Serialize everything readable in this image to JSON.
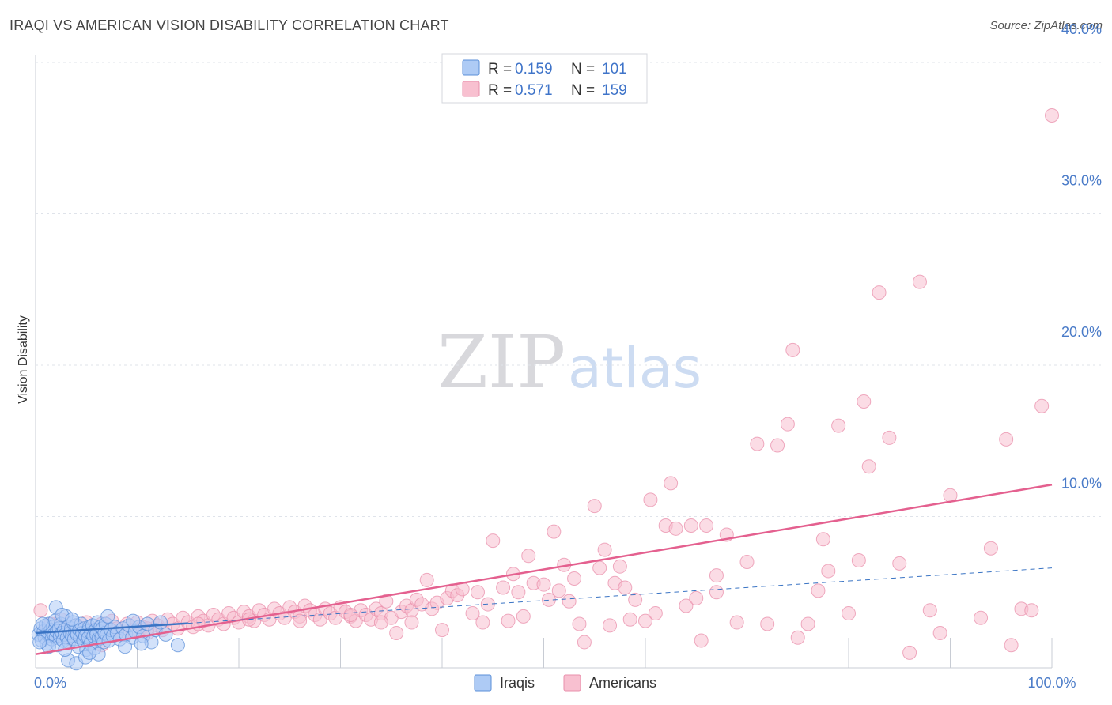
{
  "title": "IRAQI VS AMERICAN VISION DISABILITY CORRELATION CHART",
  "source": "Source: ZipAtlas.com",
  "watermark": {
    "zip": "ZIP",
    "atlas": "atlas"
  },
  "colors": {
    "iraqis_fill": "#aecbf5",
    "iraqis_stroke": "#5b8fd8",
    "iraqis_line": "#3a74c4",
    "americans_fill": "#f8c0d0",
    "americans_stroke": "#e98fab",
    "americans_line": "#e4608f",
    "tick_label": "#4a7bc8"
  },
  "legend": {
    "rows": [
      {
        "r_label": "R = ",
        "r_value": "0.159",
        "n_label": "N = ",
        "n_value": "101"
      },
      {
        "r_label": "R = ",
        "r_value": "0.571",
        "n_label": "N = ",
        "n_value": "159"
      }
    ]
  },
  "chart_data": {
    "type": "scatter",
    "title": "IRAQI VS AMERICAN VISION DISABILITY CORRELATION CHART",
    "xlabel": "",
    "ylabel": "Vision Disability",
    "xlim": [
      0,
      100
    ],
    "ylim": [
      0,
      42
    ],
    "x_tick_labels": [
      {
        "value": 0,
        "label": "0.0%"
      },
      {
        "value": 100,
        "label": "100.0%"
      }
    ],
    "y_tick_labels": [
      {
        "value": 10,
        "label": "10.0%"
      },
      {
        "value": 20,
        "label": "20.0%"
      },
      {
        "value": 30,
        "label": "30.0%"
      },
      {
        "value": 40,
        "label": "40.0%"
      }
    ],
    "grid": "horizontal dashed",
    "legend_position": "top-center",
    "series": [
      {
        "name": "Iraqis",
        "r": 0.159,
        "n": 101,
        "trend": {
          "x0": 0,
          "y0": 2.3,
          "x1": 100,
          "y1": 6.6,
          "solid_until": 15
        },
        "points": [
          [
            0.3,
            2.2
          ],
          [
            0.5,
            2.6
          ],
          [
            0.6,
            1.8
          ],
          [
            0.8,
            2.4
          ],
          [
            0.9,
            2.0
          ],
          [
            1.0,
            2.8
          ],
          [
            1.1,
            1.6
          ],
          [
            1.2,
            2.3
          ],
          [
            1.3,
            2.9
          ],
          [
            1.4,
            2.1
          ],
          [
            1.5,
            2.5
          ],
          [
            1.6,
            1.9
          ],
          [
            1.7,
            2.7
          ],
          [
            1.8,
            2.2
          ],
          [
            1.9,
            3.1
          ],
          [
            2.0,
            2.0
          ],
          [
            2.1,
            2.4
          ],
          [
            2.2,
            1.5
          ],
          [
            2.3,
            2.6
          ],
          [
            2.4,
            2.1
          ],
          [
            2.5,
            2.9
          ],
          [
            2.6,
            2.3
          ],
          [
            2.7,
            1.8
          ],
          [
            2.8,
            2.5
          ],
          [
            2.9,
            2.2
          ],
          [
            3.0,
            3.4
          ],
          [
            3.1,
            2.0
          ],
          [
            3.2,
            2.7
          ],
          [
            3.3,
            1.7
          ],
          [
            3.4,
            2.3
          ],
          [
            3.5,
            2.6
          ],
          [
            3.6,
            2.1
          ],
          [
            3.7,
            3.0
          ],
          [
            3.8,
            1.9
          ],
          [
            3.9,
            2.4
          ],
          [
            4.0,
            2.8
          ],
          [
            4.1,
            2.2
          ],
          [
            4.2,
            1.4
          ],
          [
            4.3,
            2.5
          ],
          [
            4.4,
            2.0
          ],
          [
            4.5,
            2.9
          ],
          [
            4.6,
            2.3
          ],
          [
            4.7,
            1.8
          ],
          [
            4.8,
            2.6
          ],
          [
            4.9,
            2.1
          ],
          [
            5.0,
            1.2
          ],
          [
            5.1,
            2.4
          ],
          [
            5.2,
            2.0
          ],
          [
            5.3,
            2.7
          ],
          [
            5.4,
            1.6
          ],
          [
            5.5,
            2.3
          ],
          [
            5.6,
            2.8
          ],
          [
            5.7,
            2.1
          ],
          [
            5.8,
            1.3
          ],
          [
            5.9,
            2.5
          ],
          [
            6.0,
            2.2
          ],
          [
            6.1,
            3.0
          ],
          [
            6.2,
            1.9
          ],
          [
            6.3,
            2.4
          ],
          [
            6.4,
            2.7
          ],
          [
            6.5,
            2.0
          ],
          [
            6.6,
            2.6
          ],
          [
            6.7,
            1.7
          ],
          [
            6.8,
            2.3
          ],
          [
            6.9,
            2.9
          ],
          [
            7.0,
            2.2
          ],
          [
            7.2,
            1.8
          ],
          [
            7.4,
            2.5
          ],
          [
            7.6,
            2.1
          ],
          [
            7.8,
            2.7
          ],
          [
            8.0,
            2.3
          ],
          [
            8.3,
            1.9
          ],
          [
            8.6,
            2.6
          ],
          [
            8.9,
            2.2
          ],
          [
            9.2,
            2.8
          ],
          [
            9.5,
            2.0
          ],
          [
            9.8,
            2.4
          ],
          [
            10.2,
            2.7
          ],
          [
            10.6,
            2.1
          ],
          [
            11.0,
            2.9
          ],
          [
            11.4,
            1.7
          ],
          [
            11.8,
            2.5
          ],
          [
            12.3,
            3.0
          ],
          [
            12.8,
            2.2
          ],
          [
            14.0,
            1.5
          ],
          [
            2.0,
            4.0
          ],
          [
            3.2,
            0.5
          ],
          [
            4.0,
            0.3
          ],
          [
            4.9,
            0.7
          ],
          [
            2.6,
            3.5
          ],
          [
            7.1,
            3.4
          ],
          [
            6.2,
            0.9
          ],
          [
            1.3,
            1.4
          ],
          [
            0.7,
            2.9
          ],
          [
            2.9,
            1.2
          ],
          [
            3.6,
            3.2
          ],
          [
            5.3,
            1.0
          ],
          [
            8.8,
            1.4
          ],
          [
            10.4,
            1.6
          ],
          [
            9.6,
            3.1
          ],
          [
            0.4,
            1.7
          ]
        ]
      },
      {
        "name": "Americans",
        "r": 0.571,
        "n": 159,
        "trend": {
          "x0": 0,
          "y0": 0.9,
          "x1": 100,
          "y1": 12.1
        },
        "points": [
          [
            0.5,
            3.8
          ],
          [
            1.0,
            2.4
          ],
          [
            1.5,
            2.9
          ],
          [
            2.0,
            2.1
          ],
          [
            2.5,
            3.2
          ],
          [
            3.0,
            2.6
          ],
          [
            3.5,
            1.9
          ],
          [
            4.0,
            2.8
          ],
          [
            4.5,
            2.3
          ],
          [
            5.0,
            3.0
          ],
          [
            5.5,
            2.5
          ],
          [
            6.0,
            2.0
          ],
          [
            6.5,
            2.9
          ],
          [
            7.0,
            2.4
          ],
          [
            7.5,
            3.1
          ],
          [
            8.0,
            2.6
          ],
          [
            8.5,
            2.2
          ],
          [
            9.0,
            2.9
          ],
          [
            9.5,
            2.5
          ],
          [
            10.0,
            3.0
          ],
          [
            10.5,
            2.7
          ],
          [
            11.0,
            2.3
          ],
          [
            11.5,
            3.1
          ],
          [
            12.0,
            2.8
          ],
          [
            12.5,
            2.5
          ],
          [
            13.0,
            3.2
          ],
          [
            13.5,
            2.9
          ],
          [
            14.0,
            2.6
          ],
          [
            14.5,
            3.3
          ],
          [
            15.0,
            3.0
          ],
          [
            15.5,
            2.7
          ],
          [
            16.0,
            3.4
          ],
          [
            16.5,
            3.1
          ],
          [
            17.0,
            2.8
          ],
          [
            17.5,
            3.5
          ],
          [
            18.0,
            3.2
          ],
          [
            18.5,
            2.9
          ],
          [
            19.0,
            3.6
          ],
          [
            19.5,
            3.3
          ],
          [
            20.0,
            3.0
          ],
          [
            20.5,
            3.7
          ],
          [
            21.0,
            3.4
          ],
          [
            21.5,
            3.1
          ],
          [
            22.0,
            3.8
          ],
          [
            22.5,
            3.5
          ],
          [
            23.0,
            3.2
          ],
          [
            23.5,
            3.9
          ],
          [
            24.0,
            3.6
          ],
          [
            24.5,
            3.3
          ],
          [
            25.0,
            4.0
          ],
          [
            25.5,
            3.7
          ],
          [
            26.0,
            3.4
          ],
          [
            26.5,
            4.1
          ],
          [
            27.0,
            3.8
          ],
          [
            27.5,
            3.5
          ],
          [
            28.0,
            3.2
          ],
          [
            28.5,
            3.9
          ],
          [
            29.0,
            3.6
          ],
          [
            29.5,
            3.3
          ],
          [
            30.0,
            4.0
          ],
          [
            30.5,
            3.7
          ],
          [
            31.0,
            3.4
          ],
          [
            31.5,
            3.1
          ],
          [
            32.0,
            3.8
          ],
          [
            32.5,
            3.5
          ],
          [
            33.0,
            3.2
          ],
          [
            33.5,
            3.9
          ],
          [
            34.0,
            3.6
          ],
          [
            34.5,
            4.4
          ],
          [
            35.0,
            3.3
          ],
          [
            35.5,
            2.3
          ],
          [
            36.0,
            3.7
          ],
          [
            36.5,
            4.1
          ],
          [
            37.0,
            3.8
          ],
          [
            37.5,
            4.5
          ],
          [
            38.0,
            4.2
          ],
          [
            38.5,
            5.8
          ],
          [
            39.0,
            3.9
          ],
          [
            39.5,
            4.3
          ],
          [
            40.0,
            2.5
          ],
          [
            40.5,
            4.6
          ],
          [
            41.0,
            5.1
          ],
          [
            41.5,
            4.8
          ],
          [
            42.0,
            5.2
          ],
          [
            43.0,
            3.6
          ],
          [
            44.0,
            3.0
          ],
          [
            44.5,
            4.2
          ],
          [
            45.0,
            8.4
          ],
          [
            46.0,
            5.3
          ],
          [
            46.5,
            3.1
          ],
          [
            47.0,
            6.2
          ],
          [
            47.5,
            5.0
          ],
          [
            48.0,
            3.4
          ],
          [
            48.5,
            7.4
          ],
          [
            49.0,
            5.6
          ],
          [
            50.0,
            5.5
          ],
          [
            50.5,
            4.5
          ],
          [
            51.0,
            9.0
          ],
          [
            51.5,
            5.1
          ],
          [
            52.0,
            6.8
          ],
          [
            52.5,
            4.4
          ],
          [
            53.0,
            5.9
          ],
          [
            54.0,
            1.7
          ],
          [
            55.0,
            10.7
          ],
          [
            55.5,
            6.6
          ],
          [
            56.0,
            7.8
          ],
          [
            56.5,
            2.8
          ],
          [
            57.0,
            5.6
          ],
          [
            57.5,
            6.7
          ],
          [
            58.0,
            5.3
          ],
          [
            59.0,
            4.5
          ],
          [
            60.0,
            3.1
          ],
          [
            60.5,
            11.1
          ],
          [
            61.0,
            3.6
          ],
          [
            62.0,
            9.4
          ],
          [
            62.5,
            12.2
          ],
          [
            63.0,
            9.2
          ],
          [
            64.0,
            4.1
          ],
          [
            64.5,
            9.4
          ],
          [
            65.0,
            4.6
          ],
          [
            65.5,
            1.8
          ],
          [
            66.0,
            9.4
          ],
          [
            67.0,
            6.1
          ],
          [
            68.0,
            8.8
          ],
          [
            69.0,
            3.0
          ],
          [
            70.0,
            7.0
          ],
          [
            71.0,
            14.8
          ],
          [
            72.0,
            2.9
          ],
          [
            73.0,
            14.7
          ],
          [
            74.0,
            16.1
          ],
          [
            74.5,
            21.0
          ],
          [
            75.0,
            2.0
          ],
          [
            76.0,
            2.9
          ],
          [
            77.0,
            5.1
          ],
          [
            77.5,
            8.5
          ],
          [
            78.0,
            6.4
          ],
          [
            79.0,
            16.0
          ],
          [
            80.0,
            3.6
          ],
          [
            81.0,
            7.1
          ],
          [
            81.5,
            17.6
          ],
          [
            82.0,
            13.3
          ],
          [
            83.0,
            24.8
          ],
          [
            84.0,
            15.2
          ],
          [
            85.0,
            6.9
          ],
          [
            86.0,
            1.0
          ],
          [
            87.0,
            25.5
          ],
          [
            88.0,
            3.8
          ],
          [
            89.0,
            2.3
          ],
          [
            90.0,
            11.4
          ],
          [
            93.0,
            3.3
          ],
          [
            94.0,
            7.9
          ],
          [
            96.0,
            1.5
          ],
          [
            97.0,
            3.9
          ],
          [
            98.0,
            3.8
          ],
          [
            99.0,
            17.3
          ],
          [
            100.0,
            36.5
          ],
          [
            95.5,
            15.1
          ],
          [
            67.0,
            5.0
          ],
          [
            58.5,
            3.2
          ],
          [
            53.5,
            2.9
          ],
          [
            43.5,
            5.0
          ],
          [
            37.0,
            3.0
          ],
          [
            34.0,
            3.0
          ],
          [
            31.0,
            3.5
          ],
          [
            26.0,
            3.1
          ],
          [
            21.0,
            3.2
          ],
          [
            16.0,
            2.9
          ],
          [
            11.0,
            2.6
          ],
          [
            6.5,
            1.5
          ]
        ]
      }
    ]
  },
  "bottom_legend": [
    {
      "label": "Iraqis"
    },
    {
      "label": "Americans"
    }
  ]
}
